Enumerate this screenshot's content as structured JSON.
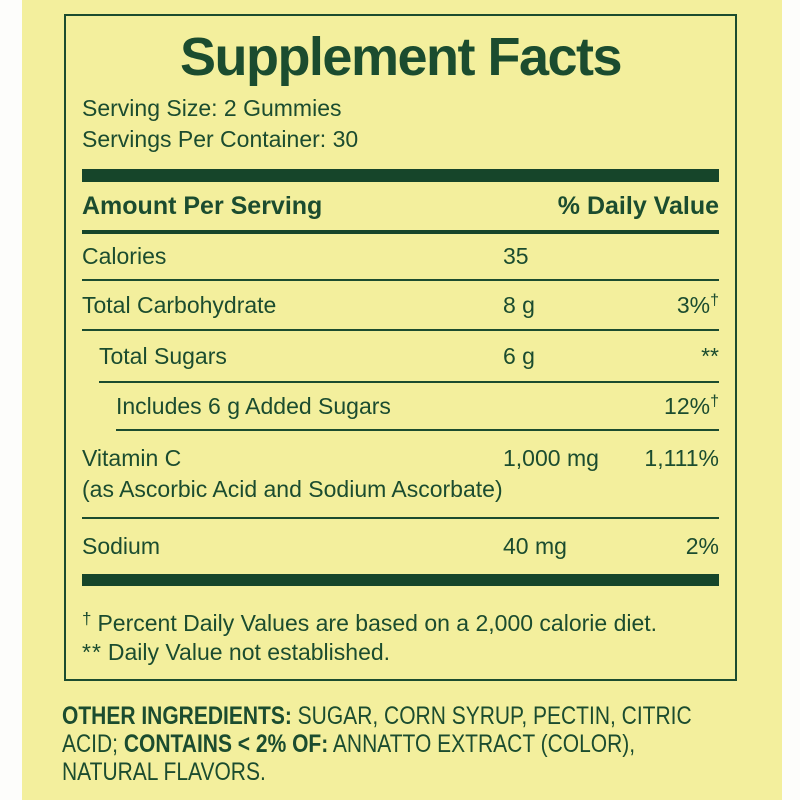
{
  "colors": {
    "background_yellow": "#f3ef9d",
    "dark_green_text": "#1b4c2f",
    "bar_green": "#16452a",
    "outer_white": "#fdfdfb"
  },
  "panel": {
    "title": "Supplement Facts",
    "serving_size": "Serving Size: 2 Gummies",
    "servings_per_container": "Servings Per Container: 30",
    "header": {
      "amount_col": "Amount Per Serving",
      "dv_col": "% Daily Value"
    },
    "rows": [
      {
        "name": "Calories",
        "amount": "35",
        "dv": "",
        "dv_sym": ""
      },
      {
        "name": "Total Carbohydrate",
        "amount": "8 g",
        "dv": "3%",
        "dv_sym": "†"
      },
      {
        "name": "Total Sugars",
        "amount": "6 g",
        "dv": "**",
        "dv_sym": ""
      },
      {
        "name": "Includes 6 g Added Sugars",
        "amount": "",
        "dv": "12%",
        "dv_sym": "†"
      },
      {
        "name": "Vitamin C",
        "sub": "(as Ascorbic Acid and Sodium Ascorbate)",
        "amount": "1,000 mg",
        "dv": "1,111%",
        "dv_sym": ""
      },
      {
        "name": "Sodium",
        "amount": "40 mg",
        "dv": "2%",
        "dv_sym": ""
      }
    ],
    "footnotes": [
      {
        "sym": "†",
        "text": "Percent Daily Values are based on a 2,000 calorie diet."
      },
      {
        "sym": "**",
        "text": "Daily Value not established."
      }
    ]
  },
  "other_ingredients": {
    "line1_bold": "OTHER INGREDIENTS:",
    "line1_rest": " SUGAR, CORN SYRUP, PECTIN, CITRIC",
    "line2_pre": "ACID; ",
    "line2_bold": "CONTAINS < 2% OF:",
    "line2_rest": " ANNATTO EXTRACT (COLOR),",
    "line3": "NATURAL FLAVORS."
  }
}
